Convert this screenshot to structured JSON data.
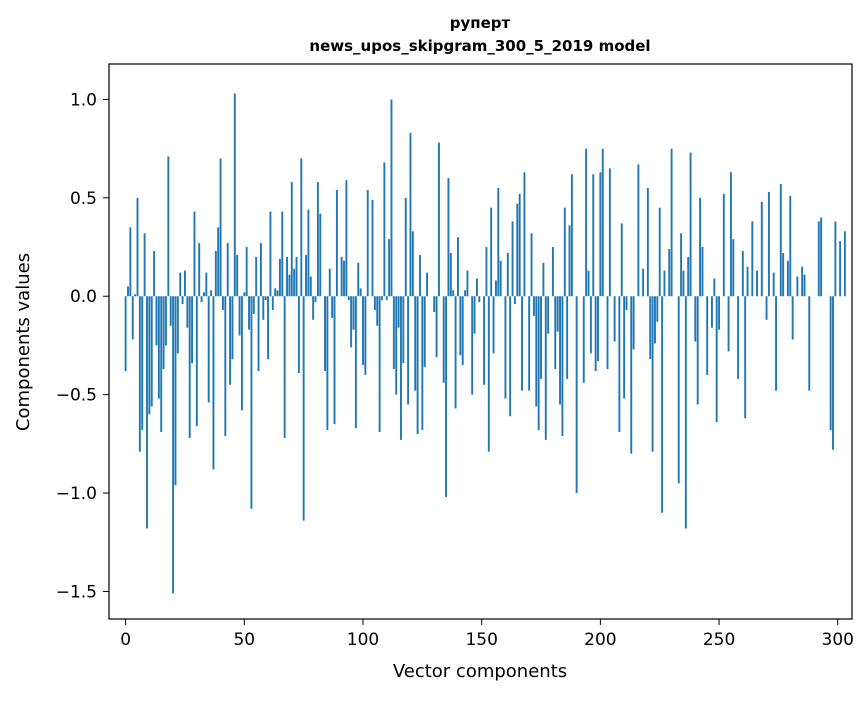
{
  "chart_data": {
    "type": "bar",
    "title_line1": "руперт",
    "title_line2": "news_upos_skipgram_300_5_2019 model",
    "xlabel": "Vector components",
    "ylabel": "Components values",
    "xlim": [
      -7,
      306
    ],
    "ylim": [
      -1.64,
      1.18
    ],
    "xticks": [
      0,
      50,
      100,
      150,
      200,
      250,
      300
    ],
    "xtick_labels": [
      "0",
      "50",
      "100",
      "150",
      "200",
      "250",
      "300"
    ],
    "yticks": [
      -1.5,
      -1.0,
      -0.5,
      0.0,
      0.5,
      1.0
    ],
    "ytick_labels": [
      "−1.5",
      "−1.0",
      "−0.5",
      "0.0",
      "0.5",
      "1.0"
    ],
    "grid": false,
    "bar_color": "#1f77b4",
    "values": [
      -0.38,
      0.05,
      0.35,
      -0.22,
      0.01,
      0.5,
      -0.79,
      -0.68,
      0.32,
      -1.18,
      -0.6,
      -0.56,
      0.23,
      -0.25,
      -0.52,
      -0.69,
      -0.37,
      -0.25,
      0.71,
      -0.15,
      -1.51,
      -0.96,
      -0.29,
      0.12,
      -0.04,
      0.13,
      -0.16,
      -0.72,
      -0.34,
      0.43,
      -0.66,
      0.27,
      -0.03,
      0.02,
      0.12,
      -0.54,
      0.03,
      -0.88,
      0.23,
      0.35,
      0.7,
      -0.07,
      -0.71,
      0.27,
      -0.45,
      -0.32,
      1.03,
      0.21,
      -0.2,
      -0.58,
      0.02,
      0.25,
      -0.17,
      -1.08,
      -0.09,
      0.2,
      -0.38,
      0.27,
      -0.12,
      -0.02,
      -0.32,
      0.43,
      -0.07,
      0.04,
      0.03,
      0.19,
      0.43,
      -0.72,
      0.2,
      0.11,
      0.58,
      0.14,
      0.2,
      -0.39,
      0.7,
      -1.14,
      0.21,
      0.44,
      0.1,
      -0.12,
      -0.03,
      0.58,
      0.42,
      0.0,
      -0.38,
      -0.68,
      0.14,
      -0.11,
      -0.65,
      0.54,
      0.0,
      0.2,
      0.18,
      0.59,
      -0.02,
      -0.26,
      -0.17,
      -0.67,
      0.17,
      0.04,
      -0.35,
      -0.4,
      0.54,
      0.0,
      0.49,
      -0.07,
      -0.15,
      -0.69,
      -0.02,
      0.68,
      -0.02,
      0.29,
      1.0,
      -0.37,
      -0.5,
      -0.16,
      -0.73,
      -0.34,
      0.5,
      -0.55,
      0.83,
      0.33,
      -0.48,
      -0.7,
      0.21,
      -0.68,
      -0.36,
      0.12,
      0.0,
      0.0,
      -0.08,
      -0.31,
      0.78,
      0.0,
      -0.44,
      -1.02,
      0.6,
      0.22,
      0.03,
      -0.57,
      0.3,
      -0.3,
      -0.35,
      0.03,
      0.13,
      0.0,
      -0.5,
      -0.19,
      0.09,
      -0.03,
      0.0,
      -0.45,
      0.25,
      -0.79,
      0.45,
      -0.29,
      0.08,
      0.55,
      0.18,
      0.0,
      -0.52,
      0.22,
      -0.61,
      0.38,
      -0.04,
      0.47,
      0.52,
      -0.48,
      0.63,
      0.0,
      -0.48,
      0.32,
      -0.1,
      -0.56,
      -0.68,
      -0.42,
      0.17,
      -0.73,
      -0.19,
      0.0,
      0.25,
      -0.37,
      -0.18,
      -0.55,
      -0.71,
      0.45,
      -0.42,
      0.36,
      0.62,
      0.0,
      -1.0,
      0.0,
      0.0,
      -0.44,
      0.75,
      0.13,
      -0.29,
      0.62,
      -0.38,
      -0.33,
      0.63,
      0.75,
      0.0,
      -0.37,
      0.65,
      0.0,
      -0.23,
      0.0,
      -0.69,
      0.37,
      -0.52,
      -0.07,
      0.0,
      -0.8,
      -0.27,
      0.0,
      0.67,
      0.0,
      0.14,
      0.0,
      0.55,
      -0.32,
      -0.79,
      -0.24,
      -0.13,
      0.45,
      -1.1,
      0.13,
      0.0,
      0.24,
      0.75,
      0.0,
      0.0,
      -0.95,
      0.32,
      0.13,
      -1.18,
      0.2,
      0.73,
      0.0,
      -0.23,
      -0.55,
      0.5,
      0.25,
      0.0,
      -0.4,
      0.0,
      -0.16,
      0.09,
      -0.64,
      -0.17,
      0.0,
      0.52,
      0.0,
      -0.28,
      0.63,
      0.29,
      0.0,
      -0.42,
      0.0,
      0.23,
      -0.62,
      0.15,
      0.0,
      0.38,
      0.0,
      0.13,
      0.0,
      0.48,
      0.0,
      -0.12,
      0.53,
      0.0,
      0.12,
      -0.48,
      0.0,
      0.57,
      0.22,
      0.0,
      0.18,
      0.51,
      -0.22,
      0.0,
      0.1,
      0.0,
      0.15,
      0.11,
      0.0,
      -0.48,
      0.0,
      0.0,
      0.0,
      0.38,
      0.4,
      0.0,
      0.0,
      0.0,
      -0.68,
      -0.78,
      0.38,
      0.0,
      0.28,
      0.0,
      0.33
    ]
  }
}
